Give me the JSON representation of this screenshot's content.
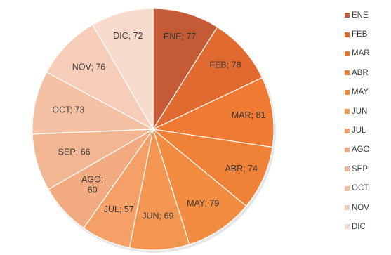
{
  "chart_data": {
    "type": "pie",
    "categories": [
      "ENE",
      "FEB",
      "MAR",
      "ABR",
      "MAY",
      "JUN",
      "JUL",
      "AGO",
      "SEP",
      "OCT",
      "NOV",
      "DIC"
    ],
    "values": [
      77,
      78,
      81,
      74,
      79,
      69,
      57,
      60,
      66,
      73,
      76,
      72
    ],
    "slice_labels": [
      "ENE; 77",
      "FEB; 78",
      "MAR; 81",
      "ABR; 74",
      "MAY; 79",
      "JUN; 69",
      "JUL; 57",
      "AGO;|60",
      "SEP; 66",
      "OCT; 73",
      "NOV; 76",
      "DIC; 72"
    ],
    "colors": [
      "#c45a36",
      "#e06a30",
      "#ee7a34",
      "#f08238",
      "#f28c40",
      "#f39652",
      "#f4a066",
      "#f2ab80",
      "#f3b692",
      "#f4c1a4",
      "#f6cdb8",
      "#f8dbcc"
    ],
    "legend_position": "right",
    "title": ""
  }
}
